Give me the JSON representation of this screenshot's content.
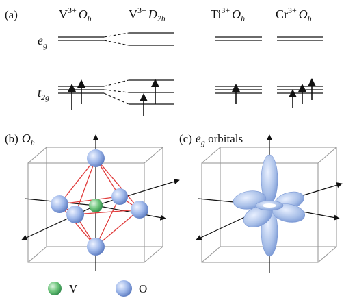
{
  "panel_a": {
    "panel_label": "(a)",
    "columns": [
      {
        "ion": "V",
        "charge": "3+",
        "symmetry": "O",
        "symmetry_sub": "h"
      },
      {
        "ion": "V",
        "charge": "3+",
        "symmetry": "D",
        "symmetry_sub": "2h"
      },
      {
        "ion": "Ti",
        "charge": "3+",
        "symmetry": "O",
        "symmetry_sub": "h"
      },
      {
        "ion": "Cr",
        "charge": "3+",
        "symmetry": "O",
        "symmetry_sub": "h"
      }
    ],
    "levels": {
      "eg": {
        "main": "e",
        "sub": "g"
      },
      "t2g": {
        "main": "t",
        "sub": "2g"
      }
    }
  },
  "panel_b": {
    "panel_label": "(b)",
    "title": "O",
    "title_sub": "h"
  },
  "panel_c": {
    "panel_label": "(c)",
    "title_main": "e",
    "title_sub": "g",
    "title_rest": " orbitals"
  },
  "legend": {
    "items": [
      {
        "label": "V",
        "color": "#5cbf6a"
      },
      {
        "label": "O",
        "color": "#8aa9e0"
      }
    ]
  },
  "colors": {
    "bond": "#e03a3a",
    "box": "#9a9a9a",
    "axis": "#111111",
    "orbital": "#a8bfe8"
  }
}
